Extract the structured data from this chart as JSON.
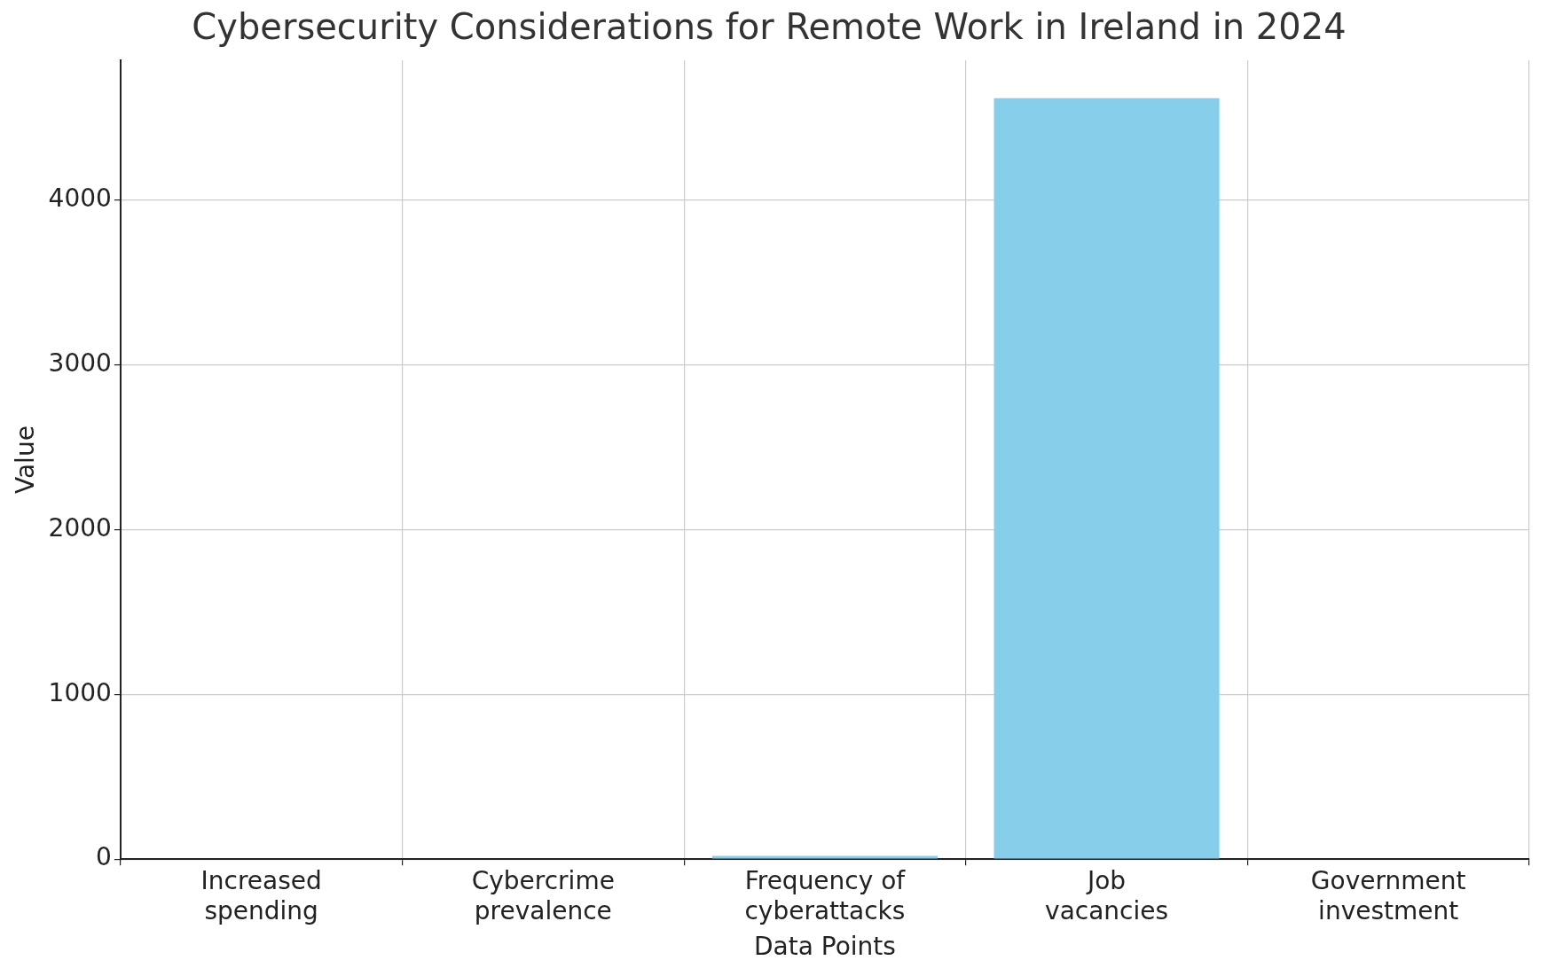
{
  "chart_data": {
    "type": "bar",
    "title": "Cybersecurity Considerations for Remote Work in Ireland in 2024",
    "xlabel": "Data Points",
    "ylabel": "Value",
    "categories": [
      "Increased spending",
      "Cybercrime prevalence",
      "Frequency of cyberattacks",
      "Job vacancies",
      "Government investment"
    ],
    "values": [
      0,
      0,
      20,
      4620,
      0
    ],
    "color": "#87ceeb",
    "ylim": [
      0,
      4850
    ],
    "yticks": [
      0,
      1000,
      2000,
      3000,
      4000
    ],
    "grid": true
  }
}
